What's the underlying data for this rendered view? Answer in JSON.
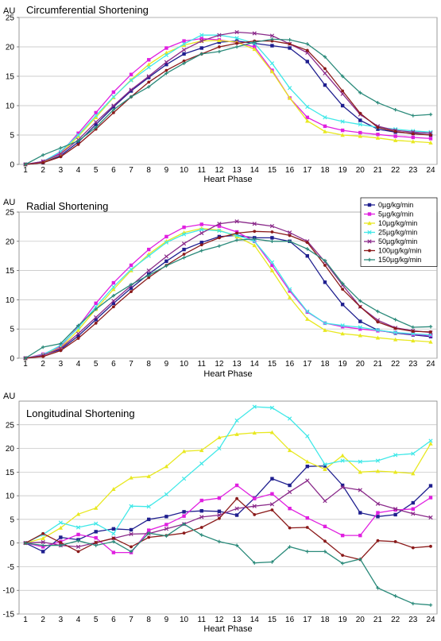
{
  "chart_data": [
    {
      "type": "line",
      "title": "Circumferential Shortening",
      "unit_label": "AU",
      "xlabel": "Heart Phase",
      "ylabel": "AU",
      "x": [
        1,
        2,
        3,
        4,
        5,
        6,
        7,
        8,
        9,
        10,
        11,
        12,
        13,
        14,
        15,
        16,
        17,
        18,
        19,
        20,
        21,
        22,
        23,
        24
      ],
      "ylim": [
        0,
        25
      ],
      "yticks": [
        0,
        5,
        10,
        15,
        20,
        25
      ],
      "grid": true,
      "legend": "none",
      "series": [
        {
          "name": "0µg/kg/min",
          "color": "#1f1f8f",
          "marker": "square",
          "values": [
            0,
            0.3,
            1.5,
            3.8,
            6.8,
            9.8,
            12.5,
            14.8,
            17,
            18.8,
            19.8,
            20.8,
            21,
            20.6,
            20.2,
            19.8,
            17.5,
            13.5,
            10,
            7.5,
            6,
            5.5,
            5.3,
            5
          ]
        },
        {
          "name": "5µg/kg/min",
          "color": "#e020e0",
          "marker": "square",
          "values": [
            0,
            0.5,
            2,
            5.3,
            8.8,
            12.3,
            15.3,
            17.8,
            19.8,
            21,
            21.4,
            21.2,
            20.7,
            20,
            16,
            11.3,
            8,
            6.5,
            5.8,
            5.4,
            5.1,
            4.8,
            4.6,
            4.4
          ]
        },
        {
          "name": "10µg/kg/min",
          "color": "#e8e820",
          "marker": "triangle",
          "values": [
            0,
            0.4,
            1.8,
            4.8,
            8,
            11.4,
            14.4,
            17,
            19,
            20.3,
            21,
            21.1,
            20.8,
            19.6,
            15.8,
            11.3,
            7.4,
            5.6,
            5,
            4.8,
            4.5,
            4.1,
            3.9,
            3.7
          ]
        },
        {
          "name": "25µg/kg/min",
          "color": "#40e8e8",
          "marker": "x",
          "values": [
            0,
            0.5,
            2.2,
            5,
            8.3,
            11.5,
            14.3,
            16.5,
            18.6,
            20.5,
            22,
            22,
            21.5,
            20.6,
            17.2,
            13,
            9.8,
            8,
            7.3,
            6.8,
            6.3,
            6,
            5.7,
            5.5
          ]
        },
        {
          "name": "50µg/kg/min",
          "color": "#8a2a8a",
          "marker": "x",
          "values": [
            0,
            0.5,
            1.8,
            4.2,
            7.2,
            10,
            12.7,
            15,
            17.4,
            19.5,
            21,
            22,
            22.5,
            22.3,
            21.9,
            20.5,
            19,
            15.5,
            12,
            8.5,
            6.5,
            5.8,
            5.5,
            5.3
          ]
        },
        {
          "name": "100µg/kg/min",
          "color": "#8b1a1a",
          "marker": "dot",
          "values": [
            0,
            0.3,
            1.3,
            3.4,
            6,
            8.8,
            11.5,
            14,
            16,
            17.6,
            18.8,
            20,
            20.6,
            21,
            21,
            20.5,
            19.4,
            16.3,
            12.5,
            8.7,
            6.3,
            5.6,
            5.2,
            5
          ]
        },
        {
          "name": "150µg/kg/min",
          "color": "#2a8a7a",
          "marker": "plus",
          "values": [
            0,
            1.6,
            2.8,
            4,
            6.3,
            9.3,
            11.5,
            13.2,
            15.5,
            17.2,
            18.8,
            19.2,
            20,
            20.8,
            21.3,
            21.2,
            20.5,
            18.3,
            15,
            12.2,
            10.5,
            9.3,
            8.3,
            8.5
          ]
        }
      ]
    },
    {
      "type": "line",
      "title": "Radial Shortening",
      "unit_label": "AU",
      "xlabel": "Heart Phase",
      "ylabel": "AU",
      "x": [
        1,
        2,
        3,
        4,
        5,
        6,
        7,
        8,
        9,
        10,
        11,
        12,
        13,
        14,
        15,
        16,
        17,
        18,
        19,
        20,
        21,
        22,
        23,
        24
      ],
      "ylim": [
        0,
        25
      ],
      "yticks": [
        0,
        5,
        10,
        15,
        20,
        25
      ],
      "grid": true,
      "legend": "right",
      "series": [
        {
          "name": "0µg/kg/min",
          "color": "#1f1f8f",
          "marker": "square",
          "values": [
            0,
            0.6,
            1.5,
            3.8,
            6.6,
            9.4,
            12,
            14.4,
            16.6,
            18.6,
            19.8,
            20.8,
            21,
            20.6,
            20.6,
            20,
            17.5,
            13,
            9.2,
            6.3,
            4.8,
            4.3,
            4,
            3.7
          ]
        },
        {
          "name": "5µg/kg/min",
          "color": "#e020e0",
          "marker": "square",
          "values": [
            0,
            0.7,
            2,
            5.4,
            9.4,
            12.9,
            15.9,
            18.6,
            20.8,
            22.4,
            22.9,
            22.6,
            21.6,
            20,
            15.9,
            11.5,
            7.9,
            6,
            5.4,
            5,
            4.7,
            4.4,
            4.1,
            3.9
          ]
        },
        {
          "name": "10µg/kg/min",
          "color": "#e8e820",
          "marker": "triangle",
          "values": [
            0,
            0.6,
            1.8,
            4.8,
            8.4,
            11.8,
            15,
            17.8,
            20,
            21.5,
            22.2,
            21.9,
            20.8,
            19.3,
            15,
            10.4,
            6.7,
            4.8,
            4.2,
            3.9,
            3.5,
            3.2,
            3,
            2.8
          ]
        },
        {
          "name": "25µg/kg/min",
          "color": "#40e8e8",
          "marker": "x",
          "values": [
            0,
            0.6,
            2.2,
            5.2,
            8.8,
            12.2,
            15.2,
            17.5,
            19.8,
            21.2,
            22,
            21.8,
            21,
            20,
            16.4,
            11.8,
            8,
            6,
            5.6,
            5.3,
            4.8,
            4.4,
            4.2,
            4
          ]
        },
        {
          "name": "50µg/kg/min",
          "color": "#8a2a8a",
          "marker": "x",
          "values": [
            0,
            0.5,
            1.7,
            4.2,
            7,
            9.8,
            12.4,
            15,
            17.4,
            19.6,
            21.4,
            23,
            23.4,
            23,
            22.6,
            21.5,
            20,
            16.5,
            12.5,
            8.8,
            6.5,
            5.2,
            4.7,
            4.4
          ]
        },
        {
          "name": "100µg/kg/min",
          "color": "#8b1a1a",
          "marker": "dot",
          "values": [
            0,
            0.3,
            1.3,
            3.4,
            6,
            8.8,
            11.4,
            13.8,
            15.9,
            17.8,
            19.4,
            20.6,
            21.4,
            21.7,
            21.6,
            21,
            19.8,
            15.9,
            11.8,
            8.8,
            6.2,
            5.1,
            4.6,
            4.5
          ]
        },
        {
          "name": "150µg/kg/min",
          "color": "#2a8a7a",
          "marker": "plus",
          "values": [
            0,
            1.9,
            2.5,
            5.6,
            8.4,
            10.7,
            12.6,
            14.2,
            15.8,
            17.2,
            18.4,
            19.2,
            20.2,
            20.4,
            20,
            20,
            18.7,
            16.7,
            12.8,
            9.8,
            8,
            6.6,
            5.3,
            5.4
          ]
        }
      ]
    },
    {
      "type": "line",
      "title": "Longitudinal Shortening",
      "unit_label": "AU",
      "xlabel": "Heart Phase",
      "ylabel": "AU",
      "x": [
        1,
        2,
        3,
        4,
        5,
        6,
        7,
        8,
        9,
        10,
        11,
        12,
        13,
        14,
        15,
        16,
        17,
        18,
        19,
        20,
        21,
        22,
        23,
        24
      ],
      "ylim": [
        -15,
        30
      ],
      "yticks": [
        -15,
        -10,
        -5,
        0,
        5,
        10,
        15,
        20,
        25
      ],
      "grid": true,
      "legend": "none",
      "series": [
        {
          "name": "0µg/kg/min",
          "color": "#1f1f8f",
          "marker": "square",
          "values": [
            0,
            -1.8,
            1.2,
            0.7,
            2.4,
            3,
            2.8,
            5,
            5.6,
            6.6,
            6.8,
            6.7,
            5.9,
            9.5,
            13.6,
            12.2,
            16.2,
            16.3,
            12.2,
            6.4,
            5.6,
            6,
            8.5,
            12.1
          ]
        },
        {
          "name": "5µg/kg/min",
          "color": "#e020e0",
          "marker": "square",
          "values": [
            0,
            -0.8,
            0.3,
            1.8,
            1.1,
            -2,
            -2,
            2.7,
            3.9,
            5.7,
            9,
            9.5,
            12.2,
            9.4,
            10.4,
            7.3,
            5.3,
            3.5,
            1.6,
            1.6,
            6.4,
            7,
            7.2,
            9.6
          ]
        },
        {
          "name": "10µg/kg/min",
          "color": "#e8e820",
          "marker": "triangle",
          "values": [
            0,
            1,
            3.2,
            6.1,
            7.4,
            11.4,
            13.8,
            14.1,
            16.2,
            19.4,
            19.6,
            22.3,
            23,
            23.3,
            23.4,
            19.6,
            17.2,
            15.6,
            18.5,
            15,
            15.2,
            15,
            14.7,
            21
          ]
        },
        {
          "name": "25µg/kg/min",
          "color": "#40e8e8",
          "marker": "x",
          "values": [
            0,
            1.8,
            4.3,
            3.3,
            4.1,
            2,
            7.8,
            7.7,
            10.3,
            13.6,
            16.8,
            20,
            25.9,
            28.8,
            28.6,
            26.3,
            22.6,
            16.6,
            17.4,
            17.2,
            17.4,
            18.6,
            18.9,
            21.6
          ]
        },
        {
          "name": "50µg/kg/min",
          "color": "#8a2a8a",
          "marker": "x",
          "values": [
            0,
            0.2,
            -0.5,
            -0.8,
            0.1,
            1,
            1.9,
            2,
            3,
            4,
            5.5,
            5.9,
            7.3,
            7.8,
            8.2,
            10.8,
            13.2,
            8.9,
            11.8,
            11.2,
            8.3,
            7.2,
            6.2,
            5.4
          ]
        },
        {
          "name": "100µg/kg/min",
          "color": "#8b1a1a",
          "marker": "dot",
          "values": [
            0,
            2,
            0.1,
            -1.8,
            0.1,
            1,
            -0.8,
            1.2,
            1.6,
            2.1,
            3.3,
            5.2,
            9.4,
            6,
            7,
            3.2,
            3.3,
            0.4,
            -2.6,
            -3.5,
            0.5,
            0.3,
            -1,
            -0.7
          ]
        },
        {
          "name": "150µg/kg/min",
          "color": "#2a8a7a",
          "marker": "plus",
          "values": [
            0,
            -0.5,
            -0.5,
            0.5,
            -0.5,
            0.3,
            -1.8,
            2.1,
            1.5,
            4,
            1.7,
            0.3,
            -0.5,
            -4.2,
            -4,
            -0.8,
            -1.8,
            -1.8,
            -4.3,
            -3.4,
            -9.5,
            -11.2,
            -12.8,
            -13.1
          ]
        }
      ]
    }
  ]
}
